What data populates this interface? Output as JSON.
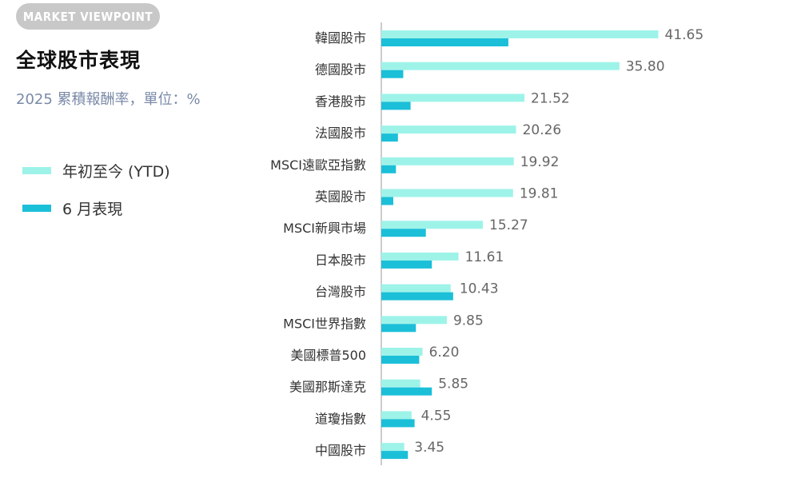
{
  "header": {
    "badge": "MARKET VIEWPOINT",
    "title": "全球股市表現",
    "subtitle": "2025 累積報酬率，單位：%"
  },
  "colors": {
    "ytd": "#9ef3e9",
    "june": "#1bbfd8",
    "axis": "#cccccc",
    "badge_bg": "#c8c8c8"
  },
  "legend": [
    {
      "label": "年初至今 (YTD)",
      "color": "#9ef3e9"
    },
    {
      "label": "6 月表現",
      "color": "#1bbfd8"
    }
  ],
  "chart_data": {
    "type": "bar",
    "orientation": "horizontal",
    "categories": [
      "韓國股市",
      "德國股市",
      "香港股市",
      "法國股市",
      "MSCI遠歐亞指數",
      "英國股市",
      "MSCI新興市場",
      "日本股市",
      "台灣股市",
      "MSCI世界指數",
      "美國標普500",
      "美國那斯達克",
      "道瓊指數",
      "中國股市"
    ],
    "series": [
      {
        "name": "年初至今 (YTD)",
        "values": [
          41.65,
          35.8,
          21.52,
          20.26,
          19.92,
          19.81,
          15.27,
          11.61,
          10.43,
          9.85,
          6.2,
          5.85,
          4.55,
          3.45
        ],
        "labels": [
          "41.65",
          "35.80",
          "21.52",
          "20.26",
          "19.92",
          "19.81",
          "15.27",
          "11.61",
          "10.43",
          "9.85",
          "6.20",
          "5.85",
          "4.55",
          "3.45"
        ]
      },
      {
        "name": "6 月表現",
        "values": [
          19.1,
          3.3,
          4.4,
          2.5,
          2.2,
          1.8,
          6.7,
          7.6,
          10.8,
          5.2,
          5.7,
          7.6,
          5.0,
          4.0
        ]
      }
    ],
    "xlim": [
      0,
      45
    ],
    "legend_position": "left",
    "grid": false
  }
}
